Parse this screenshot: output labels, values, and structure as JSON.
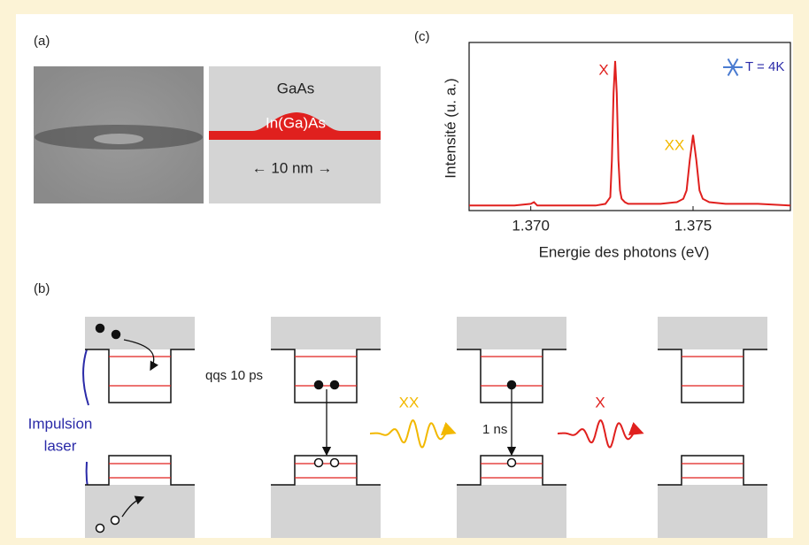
{
  "panel_labels": [
    "(a)",
    "(b)",
    "(c)"
  ],
  "panel_a": {
    "matrix": "GaAs",
    "dot": "In(Ga)As",
    "scale": "← 10 nm →"
  },
  "panel_b": {
    "relaxation": "qqs 10 ps",
    "biexciton": "XX",
    "lifetime": "1 ns",
    "exciton": "X",
    "excitation": [
      "Impulsion",
      "laser"
    ]
  },
  "chart_data": {
    "type": "line",
    "xlabel": "Energie des photons (eV)",
    "ylabel": "Intensité (u. a.)",
    "xlim": [
      1.3681,
      1.378
    ],
    "ylim": [
      0,
      1
    ],
    "xticks": [
      {
        "value": 1.37,
        "label": "1.370"
      },
      {
        "value": 1.375,
        "label": "1.375"
      }
    ],
    "x": [
      1.3681,
      1.369,
      1.3695,
      1.37,
      1.3701,
      1.3702,
      1.3705,
      1.371,
      1.3715,
      1.372,
      1.3723,
      1.37245,
      1.3725,
      1.37255,
      1.3726,
      1.37265,
      1.3727,
      1.37275,
      1.3728,
      1.3729,
      1.373,
      1.3735,
      1.374,
      1.3745,
      1.3747,
      1.3748,
      1.3749,
      1.375,
      1.3751,
      1.3752,
      1.3753,
      1.3755,
      1.376,
      1.377,
      1.378
    ],
    "series": [
      {
        "color": "#e0201e",
        "values": [
          0.03,
          0.03,
          0.03,
          0.04,
          0.05,
          0.03,
          0.03,
          0.03,
          0.03,
          0.03,
          0.04,
          0.08,
          0.3,
          0.7,
          0.89,
          0.7,
          0.3,
          0.12,
          0.07,
          0.05,
          0.04,
          0.04,
          0.04,
          0.05,
          0.07,
          0.12,
          0.3,
          0.45,
          0.3,
          0.12,
          0.07,
          0.05,
          0.04,
          0.04,
          0.03
        ]
      }
    ],
    "annotations": [
      "X",
      "XX",
      "T = 4K"
    ]
  }
}
